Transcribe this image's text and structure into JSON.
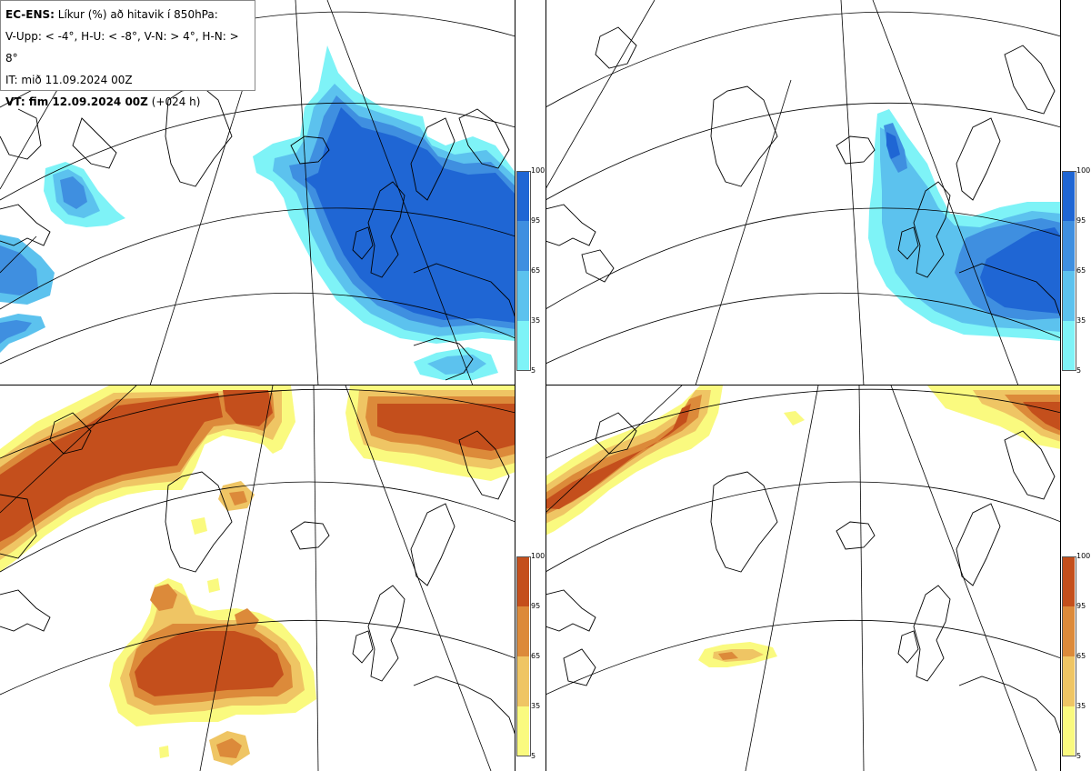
{
  "header": {
    "model": "EC-ENS:",
    "title_rest": "Líkur (%) að hitavik í 850hPa:",
    "thresholds": "V-Upp: < -4°, H-U: < -8°, V-N: > 4°, H-N: > 8°",
    "init_time": "IT: mið 11.09.2024 00Z",
    "valid_label": "VT: fim 12.09.2024 00Z",
    "lead": "(+024 h)"
  },
  "colorbars": {
    "cold": {
      "ticks": [
        "100",
        "95",
        "65",
        "35",
        "5"
      ],
      "colors": [
        "#1f66d4",
        "#3f8fe0",
        "#5cc2ee",
        "#7ef3f7"
      ]
    },
    "warm": {
      "ticks": [
        "100",
        "95",
        "65",
        "35",
        "5"
      ],
      "colors": [
        "#c44f1c",
        "#dc8a3a",
        "#efc564",
        "#fafa7f"
      ]
    }
  },
  "panels": [
    {
      "id": "upper-left",
      "variable": "V-Upp",
      "threshold": "< -4°",
      "palette": "cold"
    },
    {
      "id": "upper-right",
      "variable": "H-U",
      "threshold": "< -8°",
      "palette": "cold"
    },
    {
      "id": "lower-left",
      "variable": "V-N",
      "threshold": "> 4°",
      "palette": "warm"
    },
    {
      "id": "lower-right",
      "variable": "H-N",
      "threshold": "> 8°",
      "palette": "warm"
    }
  ]
}
